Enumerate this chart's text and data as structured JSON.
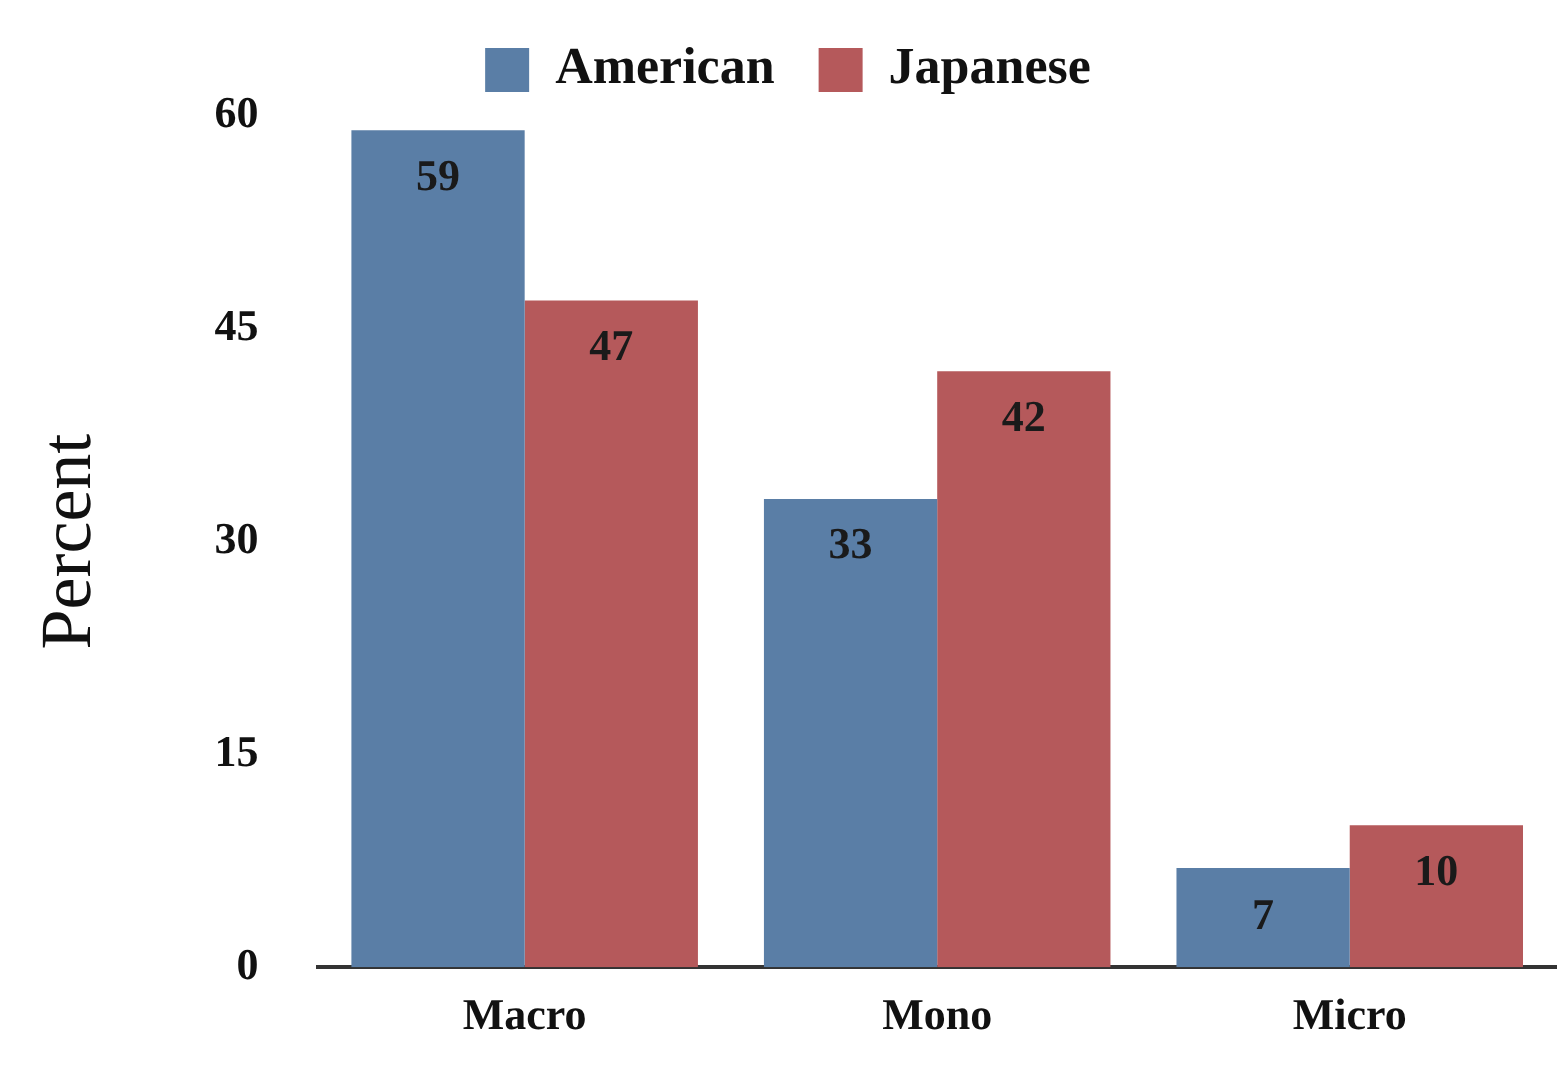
{
  "chart_data": {
    "type": "bar",
    "ylabel": "Percent",
    "categories": [
      "Macro",
      "Mono",
      "Micro"
    ],
    "series": [
      {
        "name": "American",
        "color": "#5a7ea6",
        "values": [
          59,
          33,
          7
        ]
      },
      {
        "name": "Japanese",
        "color": "#b5595b",
        "values": [
          47,
          42,
          10
        ]
      }
    ],
    "ylim": [
      0,
      60
    ],
    "yticks": [
      0,
      15,
      30,
      45,
      60
    ],
    "grid": false,
    "legend": "top",
    "data_labels": true
  }
}
